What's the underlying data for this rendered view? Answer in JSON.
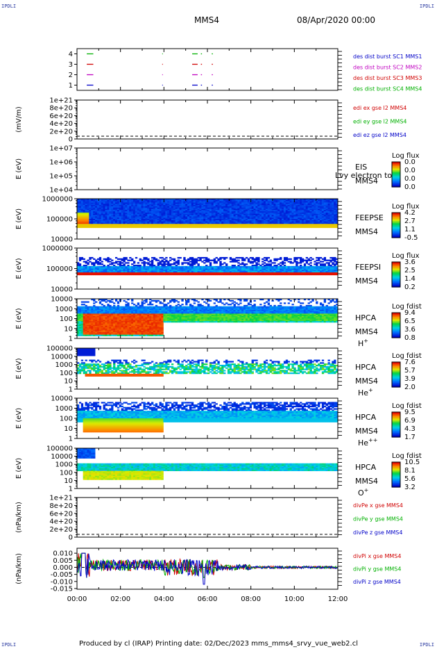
{
  "corners": {
    "top_left": "IPDLI",
    "top_right": "IPDLI",
    "bottom_left": "IPDLI",
    "bottom_right": "IPDLI"
  },
  "header": {
    "spacecraft": "MMS4",
    "datetime": "08/Apr/2020 00:00"
  },
  "footer": "Produced by cl (IRAP)   Printing date: 02/Dec/2023   mms_mms4_srvy_vue_web2.cl",
  "time_axis": {
    "ticks": [
      "00:00",
      "02:00",
      "04:00",
      "06:00",
      "08:00",
      "10:00",
      "12:00"
    ],
    "hours": [
      0,
      2,
      4,
      6,
      8,
      10,
      12
    ]
  },
  "colors": {
    "mms1": "#0000c8",
    "mms2": "#c000c0",
    "mms3": "#d00000",
    "mms4": "#00b000",
    "x": "#d00000",
    "y": "#00b000",
    "z": "#0000c8"
  },
  "chart_data": [
    {
      "type": "line",
      "id": "burst",
      "yticks": [
        "1",
        "2",
        "3",
        "4"
      ],
      "ylim": [
        0.5,
        4.5
      ],
      "legend": [
        {
          "text": "des dist burst SC1 MMS1",
          "color": "#0000c8"
        },
        {
          "text": "des dist burst SC2 MMS2",
          "color": "#c000c0"
        },
        {
          "text": "des dist burst SC3 MMS3",
          "color": "#d00000"
        },
        {
          "text": "des dist burst SC4 MMS4",
          "color": "#00b000"
        }
      ],
      "series": [
        {
          "level": 4,
          "color": "#00b000",
          "intervals": [
            [
              0.45,
              0.75
            ],
            [
              3.92,
              3.95
            ],
            [
              5.3,
              5.55
            ],
            [
              5.7,
              5.75
            ],
            [
              6.2,
              6.25
            ]
          ]
        },
        {
          "level": 3,
          "color": "#d00000",
          "intervals": [
            [
              0.45,
              0.75
            ],
            [
              3.92,
              3.95
            ],
            [
              5.3,
              5.55
            ],
            [
              5.7,
              5.75
            ],
            [
              6.2,
              6.25
            ]
          ]
        },
        {
          "level": 2,
          "color": "#c000c0",
          "intervals": [
            [
              0.45,
              0.75
            ],
            [
              3.92,
              3.95
            ],
            [
              5.3,
              5.55
            ],
            [
              5.7,
              5.75
            ],
            [
              6.2,
              6.25
            ]
          ]
        },
        {
          "level": 1,
          "color": "#0000c8",
          "intervals": [
            [
              0.45,
              0.75
            ],
            [
              3.92,
              3.95
            ],
            [
              5.3,
              5.55
            ],
            [
              5.7,
              5.75
            ],
            [
              6.2,
              6.25
            ]
          ]
        }
      ]
    },
    {
      "type": "line",
      "id": "edi",
      "ylabel": "(mV/m)",
      "yticks": [
        "0",
        "2e+20",
        "4e+20",
        "6e+20",
        "8e+20",
        "1e+21"
      ],
      "legend": [
        {
          "text": "edi ex gse l2 MMS4",
          "color": "#d00000"
        },
        {
          "text": "edi ey gse l2 MMS4",
          "color": "#00b000"
        },
        {
          "text": "edi ez gse l2 MMS4",
          "color": "#0000c8"
        }
      ],
      "zero_line": true
    },
    {
      "type": "heatmap",
      "id": "eis",
      "ylabel": "E (eV)",
      "yticks": [
        "1e+04",
        "1e+05",
        "1e+06",
        "1e+07"
      ],
      "labels": [
        "EIS",
        "MMS4"
      ],
      "overlay_text": "Lvy electron to",
      "colorbar": {
        "title": "Log flux",
        "ticks": [
          "0.0",
          "0.0",
          "0.0",
          "0.0"
        ]
      }
    },
    {
      "type": "heatmap",
      "id": "feepse",
      "ylabel": "E (eV)",
      "yticks": [
        "10000",
        "100000",
        "1000000"
      ],
      "labels": [
        "FEEPSE",
        "MMS4"
      ],
      "colorbar": {
        "title": "Log flux",
        "ticks": [
          "4.2",
          "2.7",
          "1.1",
          "-0.5"
        ]
      }
    },
    {
      "type": "heatmap",
      "id": "feepsi",
      "ylabel": "E (eV)",
      "yticks": [
        "10000",
        "100000",
        "1000000"
      ],
      "labels": [
        "FEEPSI",
        "MMS4"
      ],
      "colorbar": {
        "title": "Log flux",
        "ticks": [
          "3.6",
          "2.5",
          "1.4",
          "0.2"
        ]
      }
    },
    {
      "type": "heatmap",
      "id": "hpca_h",
      "ylabel": "E (eV)",
      "yticks": [
        "1",
        "10",
        "100",
        "1000",
        "10000"
      ],
      "labels": [
        "HPCA",
        "MMS4",
        "H"
      ],
      "species_sup": "+",
      "colorbar": {
        "title": "Log fdist",
        "ticks": [
          "9.4",
          "6.5",
          "3.6",
          "0.8"
        ]
      }
    },
    {
      "type": "heatmap",
      "id": "hpca_he1",
      "ylabel": "E (eV)",
      "yticks": [
        "1",
        "10",
        "100",
        "1000",
        "10000",
        "100000"
      ],
      "labels": [
        "HPCA",
        "MMS4",
        "He"
      ],
      "species_sup": "+",
      "colorbar": {
        "title": "Log fdist",
        "ticks": [
          "7.6",
          "5.7",
          "3.9",
          "2.0"
        ]
      }
    },
    {
      "type": "heatmap",
      "id": "hpca_he2",
      "ylabel": "E (eV)",
      "yticks": [
        "1",
        "10",
        "100",
        "1000",
        "10000"
      ],
      "labels": [
        "HPCA",
        "MMS4",
        "He"
      ],
      "species_sup": "++",
      "colorbar": {
        "title": "Log fdist",
        "ticks": [
          "9.5",
          "6.9",
          "4.3",
          "1.7"
        ]
      }
    },
    {
      "type": "heatmap",
      "id": "hpca_o",
      "ylabel": "E (eV)",
      "yticks": [
        "1",
        "10",
        "100",
        "1000",
        "10000",
        "100000"
      ],
      "labels": [
        "HPCA",
        "MMS4",
        "O"
      ],
      "species_sup": "+",
      "colorbar": {
        "title": "Log fdist",
        "ticks": [
          "10.5",
          "8.1",
          "5.6",
          "3.2"
        ]
      }
    },
    {
      "type": "line",
      "id": "divpe",
      "ylabel": "(nPa/km)",
      "yticks": [
        "0",
        "2e+20",
        "4e+20",
        "6e+20",
        "8e+20",
        "1e+21"
      ],
      "legend": [
        {
          "text": "divPe x gse MMS4",
          "color": "#d00000"
        },
        {
          "text": "divPe y gse MMS4",
          "color": "#00b000"
        },
        {
          "text": "divPe z gse MMS4",
          "color": "#0000c8"
        }
      ],
      "zero_line": true
    },
    {
      "type": "line",
      "id": "divpi",
      "ylabel": "(nPa/km)",
      "yticks": [
        "-0.015",
        "-0.010",
        "-0.005",
        "0.000",
        "0.005",
        "0.010"
      ],
      "ylim": [
        -0.0155,
        0.0135
      ],
      "legend": [
        {
          "text": "divPi x gse MMS4",
          "color": "#d00000"
        },
        {
          "text": "divPi y gse MMS4",
          "color": "#00b000"
        },
        {
          "text": "divPi z gse MMS4",
          "color": "#0000c8"
        }
      ],
      "zero_line": true
    }
  ]
}
